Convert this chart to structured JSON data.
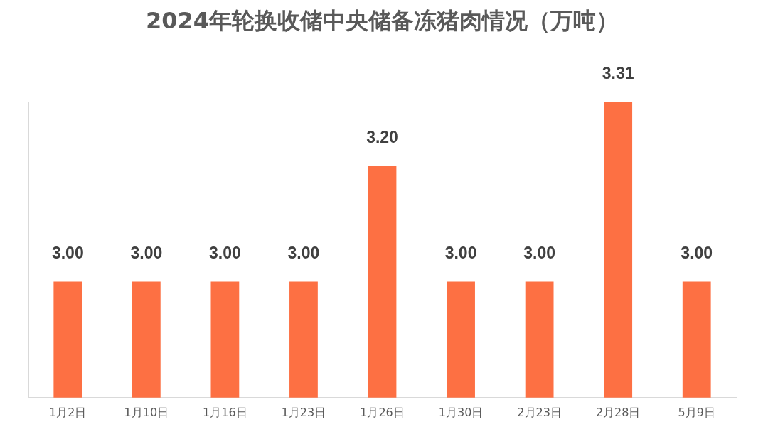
{
  "chart_data": {
    "type": "bar",
    "title": "2024年轮换收储中央储备冻猪肉情况（万吨）",
    "categories": [
      "1月2日",
      "1月10日",
      "1月16日",
      "1月23日",
      "1月26日",
      "1月30日",
      "2月23日",
      "2月28日",
      "5月9日"
    ],
    "values": [
      3.0,
      3.0,
      3.0,
      3.0,
      3.2,
      3.0,
      3.0,
      3.31,
      3.0
    ],
    "value_labels": [
      "3.00",
      "3.00",
      "3.00",
      "3.00",
      "3.20",
      "3.00",
      "3.00",
      "3.31",
      "3.00"
    ],
    "color": "#fd7043",
    "ylim": [
      2.8,
      3.31
    ],
    "tick_labels": "x"
  }
}
